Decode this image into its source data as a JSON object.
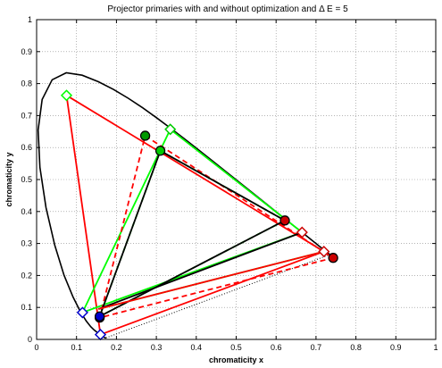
{
  "chart_data": {
    "type": "scatter",
    "title": "Projector primaries with and without optimization and Δ E = 5",
    "xlabel": "chromaticity x",
    "ylabel": "chromaticity y",
    "xlim": [
      0,
      1
    ],
    "ylim": [
      0,
      1
    ],
    "xticks": [
      0,
      0.1,
      0.2,
      0.3,
      0.4,
      0.5,
      0.6,
      0.7,
      0.8,
      0.9,
      1
    ],
    "yticks": [
      0,
      0.1,
      0.2,
      0.3,
      0.4,
      0.5,
      0.6,
      0.7,
      0.8,
      0.9,
      1
    ],
    "xtick_labels": [
      "0",
      "0.1",
      "0.2",
      "0.3",
      "0.4",
      "0.5",
      "0.6",
      "0.7",
      "0.8",
      "0.9",
      "1"
    ],
    "ytick_labels": [
      "0",
      "0.1",
      "0.2",
      "0.3",
      "0.4",
      "0.5",
      "0.6",
      "0.7",
      "0.8",
      "0.9",
      "1"
    ],
    "grid": true,
    "legend": "none",
    "colors": {
      "red": "#ff0000",
      "green": "#00ff00",
      "black": "#000000",
      "dark_red": "#cc0000",
      "dark_green": "#009900",
      "blue": "#0000cc",
      "dark_blue": "#000099"
    },
    "spectral_locus": {
      "color": "#000000",
      "points": [
        [
          0.1741,
          0.005
        ],
        [
          0.1738,
          0.0049
        ],
        [
          0.1736,
          0.0049
        ],
        [
          0.1733,
          0.0048
        ],
        [
          0.173,
          0.0048
        ],
        [
          0.1726,
          0.0048
        ],
        [
          0.1721,
          0.0048
        ],
        [
          0.1714,
          0.0051
        ],
        [
          0.1703,
          0.0058
        ],
        [
          0.1689,
          0.0069
        ],
        [
          0.1669,
          0.0086
        ],
        [
          0.1644,
          0.0109
        ],
        [
          0.1611,
          0.0138
        ],
        [
          0.1566,
          0.0177
        ],
        [
          0.151,
          0.0227
        ],
        [
          0.144,
          0.0297
        ],
        [
          0.1355,
          0.0399
        ],
        [
          0.1241,
          0.0578
        ],
        [
          0.1096,
          0.0868
        ],
        [
          0.0913,
          0.1327
        ],
        [
          0.0687,
          0.2007
        ],
        [
          0.0454,
          0.295
        ],
        [
          0.0235,
          0.4127
        ],
        [
          0.0082,
          0.5384
        ],
        [
          0.0039,
          0.6548
        ],
        [
          0.0139,
          0.7502
        ],
        [
          0.0389,
          0.812
        ],
        [
          0.0743,
          0.8338
        ],
        [
          0.1142,
          0.8262
        ],
        [
          0.1547,
          0.8059
        ],
        [
          0.1929,
          0.7816
        ],
        [
          0.2296,
          0.7543
        ],
        [
          0.2658,
          0.7243
        ],
        [
          0.3016,
          0.6923
        ],
        [
          0.3373,
          0.6589
        ],
        [
          0.3731,
          0.6245
        ],
        [
          0.4087,
          0.5896
        ],
        [
          0.4441,
          0.5547
        ],
        [
          0.4788,
          0.5202
        ],
        [
          0.5125,
          0.4866
        ],
        [
          0.5448,
          0.4544
        ],
        [
          0.5752,
          0.4242
        ],
        [
          0.6029,
          0.3965
        ],
        [
          0.627,
          0.3725
        ],
        [
          0.6482,
          0.3514
        ],
        [
          0.6658,
          0.334
        ],
        [
          0.6801,
          0.3197
        ],
        [
          0.6915,
          0.3083
        ],
        [
          0.7006,
          0.2993
        ],
        [
          0.7079,
          0.292
        ],
        [
          0.714,
          0.2859
        ],
        [
          0.719,
          0.2809
        ],
        [
          0.723,
          0.277
        ],
        [
          0.726,
          0.274
        ],
        [
          0.7283,
          0.2717
        ],
        [
          0.73,
          0.27
        ],
        [
          0.7311,
          0.2689
        ],
        [
          0.732,
          0.268
        ],
        [
          0.7327,
          0.2673
        ],
        [
          0.7334,
          0.2666
        ],
        [
          0.734,
          0.266
        ],
        [
          0.7344,
          0.2656
        ],
        [
          0.7346,
          0.2654
        ],
        [
          0.7347,
          0.2653
        ]
      ]
    },
    "purple_line": {
      "color": "#000000",
      "style": "dotted",
      "points": [
        [
          0.1741,
          0.005
        ],
        [
          0.7347,
          0.2653
        ]
      ]
    },
    "series": [
      {
        "color": "#ff0000",
        "line_style": "solid",
        "points": [
          [
            0.075,
            0.763
          ],
          [
            0.72,
            0.275
          ],
          [
            0.16,
            0.015
          ]
        ],
        "markers": [
          {
            "index": 0,
            "shape": "diamond",
            "edge": "#00ff00",
            "fill": "#ffffff"
          },
          {
            "index": 1,
            "shape": "diamond",
            "edge": "#cc0000",
            "fill": "#ffffff"
          },
          {
            "index": 2,
            "shape": "diamond",
            "edge": "#0000cc",
            "fill": "#ffffff"
          }
        ]
      },
      {
        "color": "#00ff00",
        "line_style": "solid",
        "points": [
          [
            0.335,
            0.657
          ],
          [
            0.665,
            0.335
          ],
          [
            0.115,
            0.084
          ]
        ],
        "markers": [
          {
            "index": 0,
            "shape": "diamond",
            "edge": "#00cc00",
            "fill": "#ffffff"
          },
          {
            "index": 1,
            "shape": "diamond",
            "edge": "#cc0000",
            "fill": "#ffffff"
          },
          {
            "index": 2,
            "shape": "diamond",
            "edge": "#0000cc",
            "fill": "#ffffff"
          }
        ]
      },
      {
        "color": "#00ff00",
        "line_style": "solid",
        "points": [
          [
            0.155,
            0.095
          ],
          [
            0.72,
            0.275
          ]
        ],
        "markers": []
      },
      {
        "color": "#ff0000",
        "line_style": "dashed",
        "points": [
          [
            0.272,
            0.637
          ],
          [
            0.743,
            0.255
          ],
          [
            0.158,
            0.068
          ]
        ],
        "markers": [
          {
            "index": 0,
            "shape": "circle",
            "edge": "#000000",
            "fill": "#009900"
          },
          {
            "index": 1,
            "shape": "circle",
            "edge": "#000000",
            "fill": "#cc0000"
          },
          {
            "index": 2,
            "shape": "circle",
            "edge": "#000000",
            "fill": "#000099"
          }
        ]
      },
      {
        "color": "#00ff00",
        "line_style": "dashed",
        "points": [
          [
            0.31,
            0.59
          ],
          [
            0.622,
            0.372
          ],
          [
            0.158,
            0.072
          ]
        ],
        "markers": []
      },
      {
        "color": "#000000",
        "line_style": "solid",
        "points": [
          [
            0.31,
            0.59
          ],
          [
            0.622,
            0.372
          ],
          [
            0.158,
            0.072
          ]
        ],
        "markers": [
          {
            "index": 0,
            "shape": "circle",
            "edge": "#000000",
            "fill": "#00cc00"
          },
          {
            "index": 1,
            "shape": "circle",
            "edge": "#000000",
            "fill": "#cc0000"
          },
          {
            "index": 2,
            "shape": "circle",
            "edge": "#000000",
            "fill": "#0000cc"
          }
        ]
      },
      {
        "color": "#000000",
        "line_style": "solid",
        "points": [
          [
            0.155,
            0.095
          ],
          [
            0.665,
            0.335
          ]
        ],
        "markers": []
      },
      {
        "color": "#ff0000",
        "line_style": "solid",
        "points": [
          [
            0.155,
            0.095
          ],
          [
            0.72,
            0.275
          ]
        ],
        "markers": []
      }
    ]
  }
}
